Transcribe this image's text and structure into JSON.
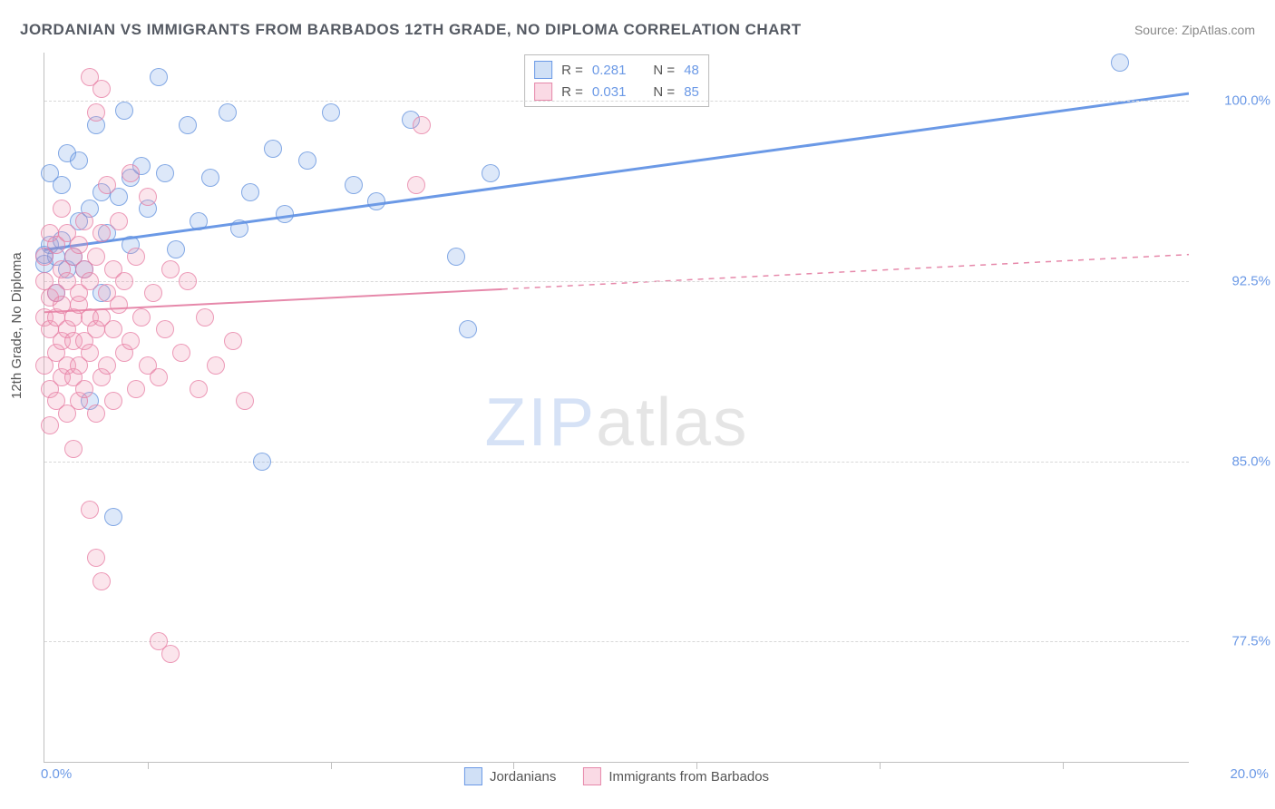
{
  "title": "JORDANIAN VS IMMIGRANTS FROM BARBADOS 12TH GRADE, NO DIPLOMA CORRELATION CHART",
  "source": "Source: ZipAtlas.com",
  "y_axis_label": "12th Grade, No Diploma",
  "watermark_a": "ZIP",
  "watermark_b": "atlas",
  "chart": {
    "type": "scatter",
    "background_color": "#ffffff",
    "grid_color": "#d8d8d8",
    "axis_color": "#c0c0c0",
    "xlim": [
      0,
      20
    ],
    "ylim": [
      72.5,
      102.0
    ],
    "x_origin_label": "0.0%",
    "x_max_label": "20.0%",
    "x_tick_positions": [
      1.8,
      5.0,
      8.2,
      11.4,
      14.6,
      17.8
    ],
    "y_ticks": [
      {
        "value": 100.0,
        "label": "100.0%"
      },
      {
        "value": 92.5,
        "label": "92.5%"
      },
      {
        "value": 85.0,
        "label": "85.0%"
      },
      {
        "value": 77.5,
        "label": "77.5%"
      }
    ],
    "series": [
      {
        "name": "Jordanians",
        "color": "#6b99e6",
        "fill": "rgba(120,165,230,0.25)",
        "swatch": "blue",
        "marker_radius_px": 9,
        "R": "0.281",
        "N": "48",
        "trend": {
          "x1": 0.0,
          "y1": 93.8,
          "x2": 20.0,
          "y2": 100.3,
          "solid_until_x": 20.0,
          "width": 3
        },
        "points": [
          [
            0.0,
            93.6
          ],
          [
            0.0,
            93.2
          ],
          [
            0.1,
            94.0
          ],
          [
            0.1,
            97.0
          ],
          [
            0.2,
            93.5
          ],
          [
            0.2,
            92.0
          ],
          [
            0.3,
            94.2
          ],
          [
            0.3,
            96.5
          ],
          [
            0.4,
            93.0
          ],
          [
            0.4,
            97.8
          ],
          [
            0.5,
            93.5
          ],
          [
            0.6,
            95.0
          ],
          [
            0.6,
            97.5
          ],
          [
            0.7,
            93.0
          ],
          [
            0.8,
            87.5
          ],
          [
            0.8,
            95.5
          ],
          [
            0.9,
            99.0
          ],
          [
            1.0,
            96.2
          ],
          [
            1.0,
            92.0
          ],
          [
            1.1,
            94.5
          ],
          [
            1.2,
            82.7
          ],
          [
            1.3,
            96.0
          ],
          [
            1.4,
            99.6
          ],
          [
            1.5,
            94.0
          ],
          [
            1.5,
            96.8
          ],
          [
            1.7,
            97.3
          ],
          [
            1.8,
            95.5
          ],
          [
            2.0,
            101.0
          ],
          [
            2.1,
            97.0
          ],
          [
            2.3,
            93.8
          ],
          [
            2.5,
            99.0
          ],
          [
            2.7,
            95.0
          ],
          [
            2.9,
            96.8
          ],
          [
            3.2,
            99.5
          ],
          [
            3.4,
            94.7
          ],
          [
            3.6,
            96.2
          ],
          [
            3.8,
            85.0
          ],
          [
            4.0,
            98.0
          ],
          [
            4.2,
            95.3
          ],
          [
            4.6,
            97.5
          ],
          [
            5.0,
            99.5
          ],
          [
            5.4,
            96.5
          ],
          [
            5.8,
            95.8
          ],
          [
            6.4,
            99.2
          ],
          [
            7.2,
            93.5
          ],
          [
            7.4,
            90.5
          ],
          [
            7.8,
            97.0
          ],
          [
            18.8,
            101.6
          ]
        ]
      },
      {
        "name": "Immigrants from Barbados",
        "color": "#e688aa",
        "fill": "rgba(240,150,180,0.25)",
        "swatch": "pink",
        "marker_radius_px": 9,
        "R": "0.031",
        "N": "85",
        "trend": {
          "x1": 0.0,
          "y1": 91.2,
          "x2": 20.0,
          "y2": 93.6,
          "solid_until_x": 8.0,
          "width": 2
        },
        "points": [
          [
            0.0,
            92.5
          ],
          [
            0.0,
            91.0
          ],
          [
            0.0,
            89.0
          ],
          [
            0.0,
            93.5
          ],
          [
            0.1,
            94.5
          ],
          [
            0.1,
            90.5
          ],
          [
            0.1,
            88.0
          ],
          [
            0.1,
            91.8
          ],
          [
            0.1,
            86.5
          ],
          [
            0.2,
            92.0
          ],
          [
            0.2,
            89.5
          ],
          [
            0.2,
            91.0
          ],
          [
            0.2,
            94.0
          ],
          [
            0.2,
            87.5
          ],
          [
            0.3,
            93.0
          ],
          [
            0.3,
            90.0
          ],
          [
            0.3,
            88.5
          ],
          [
            0.3,
            91.5
          ],
          [
            0.3,
            95.5
          ],
          [
            0.4,
            89.0
          ],
          [
            0.4,
            92.5
          ],
          [
            0.4,
            87.0
          ],
          [
            0.4,
            90.5
          ],
          [
            0.4,
            94.5
          ],
          [
            0.5,
            91.0
          ],
          [
            0.5,
            88.5
          ],
          [
            0.5,
            93.5
          ],
          [
            0.5,
            85.5
          ],
          [
            0.5,
            90.0
          ],
          [
            0.6,
            92.0
          ],
          [
            0.6,
            89.0
          ],
          [
            0.6,
            94.0
          ],
          [
            0.6,
            87.5
          ],
          [
            0.6,
            91.5
          ],
          [
            0.7,
            90.0
          ],
          [
            0.7,
            93.0
          ],
          [
            0.7,
            88.0
          ],
          [
            0.7,
            95.0
          ],
          [
            0.8,
            91.0
          ],
          [
            0.8,
            89.5
          ],
          [
            0.8,
            92.5
          ],
          [
            0.8,
            101.0
          ],
          [
            0.8,
            83.0
          ],
          [
            0.9,
            90.5
          ],
          [
            0.9,
            93.5
          ],
          [
            0.9,
            87.0
          ],
          [
            0.9,
            99.5
          ],
          [
            0.9,
            81.0
          ],
          [
            1.0,
            91.0
          ],
          [
            1.0,
            88.5
          ],
          [
            1.0,
            94.5
          ],
          [
            1.0,
            100.5
          ],
          [
            1.0,
            80.0
          ],
          [
            1.1,
            92.0
          ],
          [
            1.1,
            89.0
          ],
          [
            1.1,
            96.5
          ],
          [
            1.2,
            90.5
          ],
          [
            1.2,
            93.0
          ],
          [
            1.2,
            87.5
          ],
          [
            1.3,
            91.5
          ],
          [
            1.3,
            95.0
          ],
          [
            1.4,
            89.5
          ],
          [
            1.4,
            92.5
          ],
          [
            1.5,
            90.0
          ],
          [
            1.5,
            97.0
          ],
          [
            1.6,
            88.0
          ],
          [
            1.6,
            93.5
          ],
          [
            1.7,
            91.0
          ],
          [
            1.8,
            89.0
          ],
          [
            1.8,
            96.0
          ],
          [
            1.9,
            92.0
          ],
          [
            2.0,
            88.5
          ],
          [
            2.0,
            77.5
          ],
          [
            2.1,
            90.5
          ],
          [
            2.2,
            93.0
          ],
          [
            2.2,
            77.0
          ],
          [
            2.4,
            89.5
          ],
          [
            2.5,
            92.5
          ],
          [
            2.7,
            88.0
          ],
          [
            2.8,
            91.0
          ],
          [
            3.0,
            89.0
          ],
          [
            3.3,
            90.0
          ],
          [
            3.5,
            87.5
          ],
          [
            6.5,
            96.5
          ],
          [
            6.6,
            99.0
          ]
        ]
      }
    ]
  },
  "bottom_legend": [
    {
      "label": "Jordanians",
      "swatch": "blue"
    },
    {
      "label": "Immigrants from Barbados",
      "swatch": "pink"
    }
  ]
}
